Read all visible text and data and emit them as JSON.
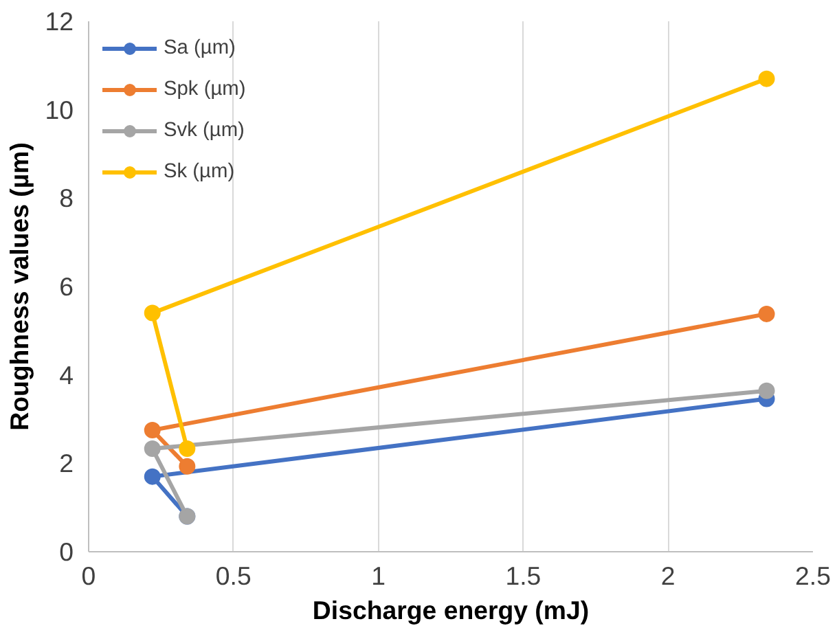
{
  "chart_data": {
    "type": "line",
    "xlabel": "Discharge energy (mJ)",
    "ylabel": "Roughness values (µm)",
    "x": [
      0.34,
      0.22,
      2.34
    ],
    "series": [
      {
        "name": "Sa (µm)",
        "color": "#4472c4",
        "values": [
          0.8,
          1.7,
          3.46
        ]
      },
      {
        "name": "Spk (µm)",
        "color": "#ed7d31",
        "values": [
          1.93,
          2.75,
          5.38
        ]
      },
      {
        "name": "Svk (µm)",
        "color": "#a5a5a5",
        "values": [
          0.8,
          2.33,
          3.64
        ]
      },
      {
        "name": "Sk (µm)",
        "color": "#ffc000",
        "values": [
          2.33,
          5.4,
          10.7
        ]
      }
    ],
    "xlim": [
      0,
      2.5
    ],
    "xticks": [
      0,
      0.5,
      1,
      1.5,
      2,
      2.5
    ],
    "ylim": [
      0,
      12
    ],
    "yticks": [
      0,
      2,
      4,
      6,
      8,
      10,
      12
    ],
    "grid": "x",
    "legend": "top left",
    "marker": "circle",
    "line_style": "solid"
  }
}
